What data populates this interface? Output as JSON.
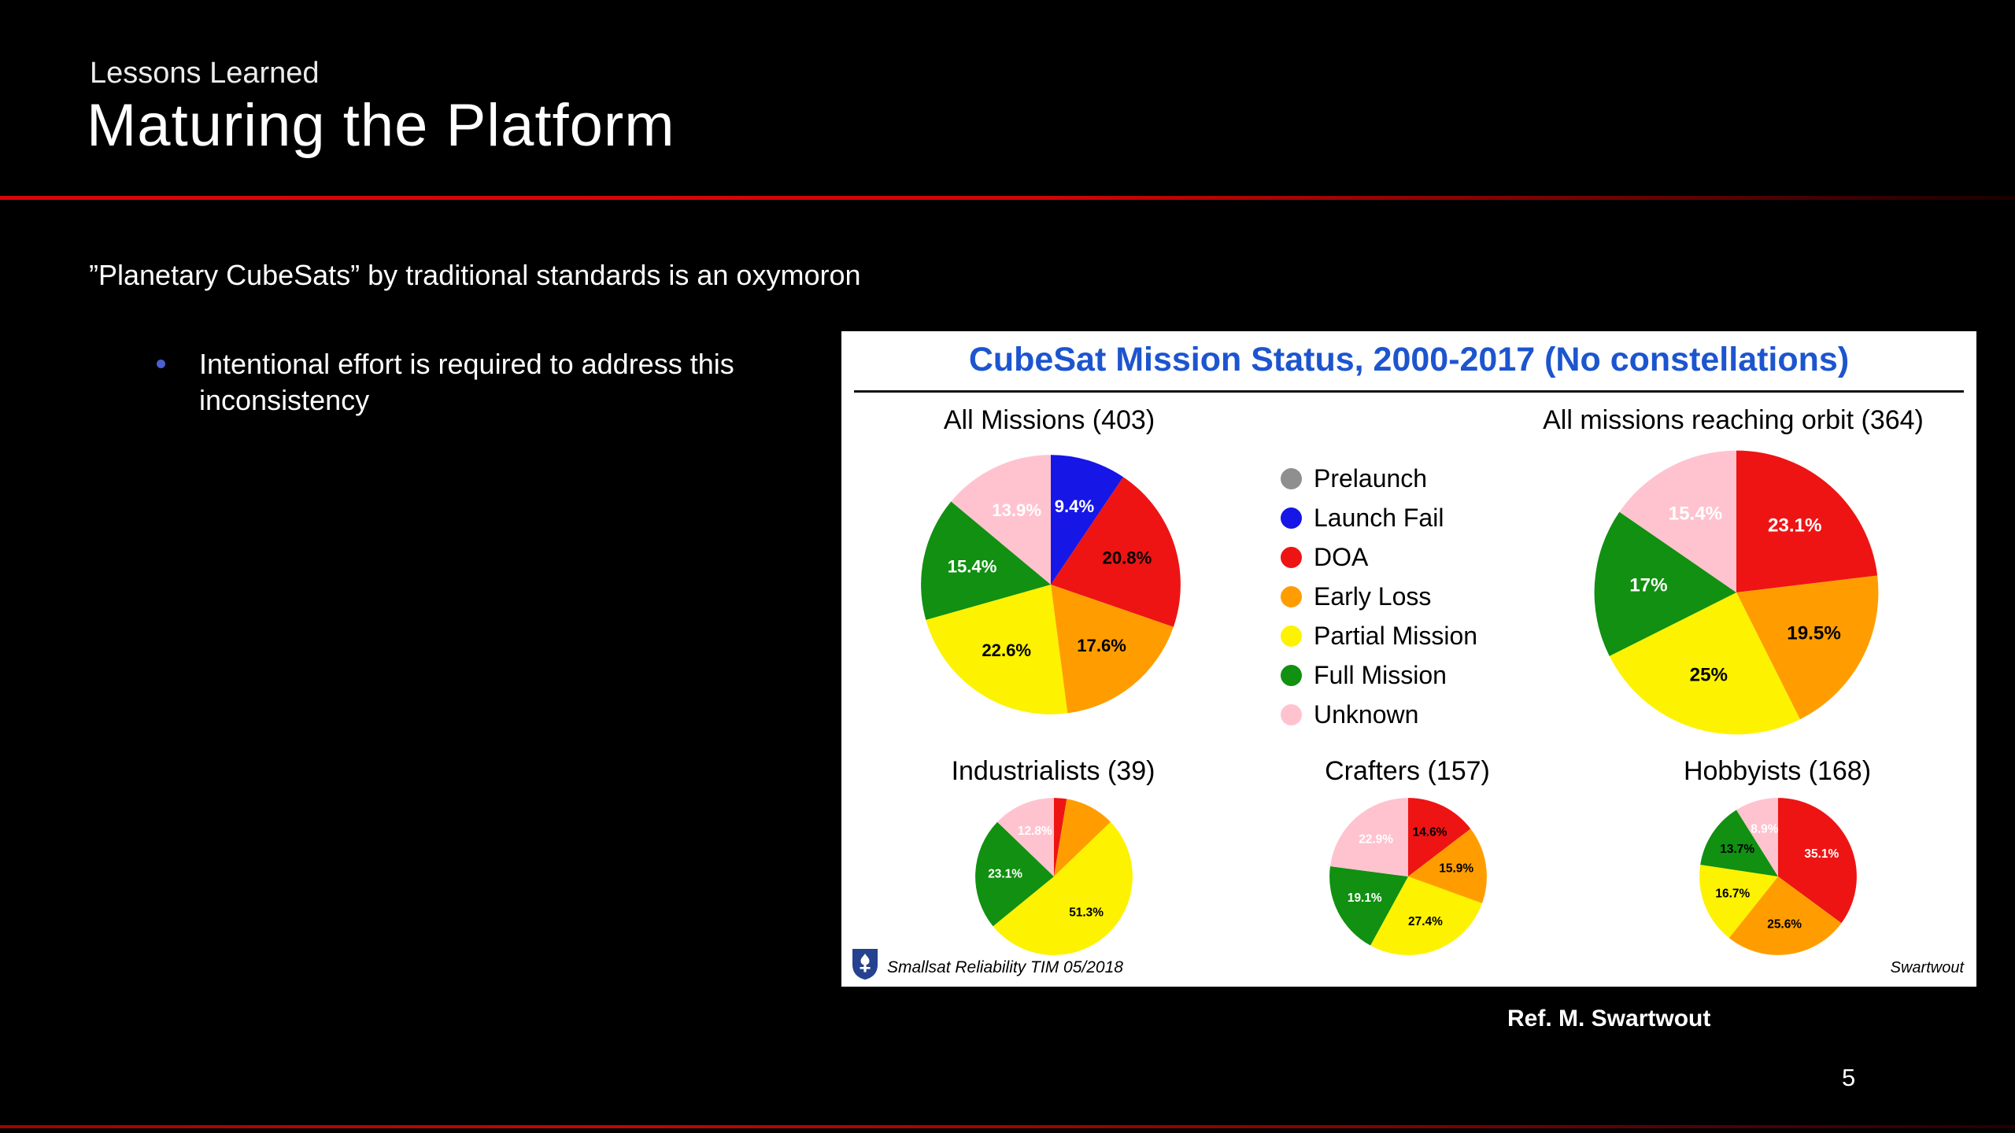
{
  "slide": {
    "eyebrow": "Lessons Learned",
    "title": "Maturing the Platform",
    "statement": "”Planetary CubeSats” by traditional standards is an oxymoron",
    "bullet_text": "Intentional effort is required to address this inconsistency",
    "reference": "Ref. M. Swartwout",
    "page_number": "5",
    "accent_color": "#d00505",
    "background_color": "#000000"
  },
  "figure": {
    "title": "CubeSat Mission Status, 2000-2017 (No constellations)",
    "title_color": "#1d55cf",
    "footer_left": "Smallsat Reliability TIM 05/2018",
    "footer_right": "Swartwout",
    "legend_position": "center between top pies",
    "legend": [
      {
        "label": "Prelaunch",
        "color": "#8f8f8f"
      },
      {
        "label": "Launch Fail",
        "color": "#1616e6"
      },
      {
        "label": "DOA",
        "color": "#ee1414"
      },
      {
        "label": "Early Loss",
        "color": "#ff9d00"
      },
      {
        "label": "Partial Mission",
        "color": "#fdf200"
      },
      {
        "label": "Full Mission",
        "color": "#119011"
      },
      {
        "label": "Unknown",
        "color": "#ffc3cf"
      }
    ]
  },
  "chart_data": [
    {
      "type": "pie",
      "title": "All Missions (403)",
      "total": 403,
      "start_angle": "12 o'clock, clockwise",
      "slices": [
        {
          "label": "Launch Fail",
          "value": 9.4,
          "display": "9.4%",
          "color": "#1616e6",
          "label_color": "#ffffff"
        },
        {
          "label": "DOA",
          "value": 20.8,
          "display": "20.8%",
          "color": "#ee1414",
          "label_color": "#000000"
        },
        {
          "label": "Early Loss",
          "value": 17.6,
          "display": "17.6%",
          "color": "#ff9d00",
          "label_color": "#000000"
        },
        {
          "label": "Partial Mission",
          "value": 22.6,
          "display": "22.6%",
          "color": "#fdf200",
          "label_color": "#000000"
        },
        {
          "label": "Full Mission",
          "value": 15.4,
          "display": "15.4%",
          "color": "#119011",
          "label_color": "#ffffff"
        },
        {
          "label": "Unknown",
          "value": 13.9,
          "display": "13.9%",
          "color": "#ffc3cf",
          "label_color": "#ffffff"
        }
      ]
    },
    {
      "type": "pie",
      "title": "All missions reaching orbit (364)",
      "total": 364,
      "start_angle": "12 o'clock, clockwise",
      "slices": [
        {
          "label": "DOA",
          "value": 23.1,
          "display": "23.1%",
          "color": "#ee1414",
          "label_color": "#ffffff"
        },
        {
          "label": "Early Loss",
          "value": 19.5,
          "display": "19.5%",
          "color": "#ff9d00",
          "label_color": "#000000"
        },
        {
          "label": "Partial Mission",
          "value": 25.0,
          "display": "25%",
          "color": "#fdf200",
          "label_color": "#000000"
        },
        {
          "label": "Full Mission",
          "value": 17.0,
          "display": "17%",
          "color": "#119011",
          "label_color": "#ffffff"
        },
        {
          "label": "Unknown",
          "value": 15.4,
          "display": "15.4%",
          "color": "#ffc3cf",
          "label_color": "#ffffff"
        }
      ]
    },
    {
      "type": "pie",
      "title": "Industrialists (39)",
      "total": 39,
      "start_angle": "12 o'clock, clockwise",
      "slices": [
        {
          "label": "DOA",
          "value": 2.6,
          "display": "",
          "color": "#ee1414",
          "label_color": "#000000"
        },
        {
          "label": "Early Loss",
          "value": 10.2,
          "display": "",
          "color": "#ff9d00",
          "label_color": "#000000"
        },
        {
          "label": "Partial Mission",
          "value": 51.3,
          "display": "51.3%",
          "color": "#fdf200",
          "label_color": "#000000"
        },
        {
          "label": "Full Mission",
          "value": 23.1,
          "display": "23.1%",
          "color": "#119011",
          "label_color": "#ffffff"
        },
        {
          "label": "Unknown",
          "value": 12.8,
          "display": "12.8%",
          "color": "#ffc3cf",
          "label_color": "#ffffff"
        }
      ]
    },
    {
      "type": "pie",
      "title": "Crafters (157)",
      "total": 157,
      "start_angle": "12 o'clock, clockwise",
      "slices": [
        {
          "label": "DOA",
          "value": 14.6,
          "display": "14.6%",
          "color": "#ee1414",
          "label_color": "#000000"
        },
        {
          "label": "Early Loss",
          "value": 15.9,
          "display": "15.9%",
          "color": "#ff9d00",
          "label_color": "#000000"
        },
        {
          "label": "Partial Mission",
          "value": 27.4,
          "display": "27.4%",
          "color": "#fdf200",
          "label_color": "#000000"
        },
        {
          "label": "Full Mission",
          "value": 19.1,
          "display": "19.1%",
          "color": "#119011",
          "label_color": "#ffffff"
        },
        {
          "label": "Unknown",
          "value": 22.9,
          "display": "22.9%",
          "color": "#ffc3cf",
          "label_color": "#ffffff"
        }
      ]
    },
    {
      "type": "pie",
      "title": "Hobbyists (168)",
      "total": 168,
      "start_angle": "12 o'clock, clockwise",
      "slices": [
        {
          "label": "DOA",
          "value": 35.1,
          "display": "35.1%",
          "color": "#ee1414",
          "label_color": "#ffffff"
        },
        {
          "label": "Early Loss",
          "value": 25.6,
          "display": "25.6%",
          "color": "#ff9d00",
          "label_color": "#000000"
        },
        {
          "label": "Partial Mission",
          "value": 16.7,
          "display": "16.7%",
          "color": "#fdf200",
          "label_color": "#000000"
        },
        {
          "label": "Full Mission",
          "value": 13.7,
          "display": "13.7%",
          "color": "#119011",
          "label_color": "#000000"
        },
        {
          "label": "Unknown",
          "value": 8.9,
          "display": "8.9%",
          "color": "#ffc3cf",
          "label_color": "#ffffff"
        }
      ]
    }
  ]
}
